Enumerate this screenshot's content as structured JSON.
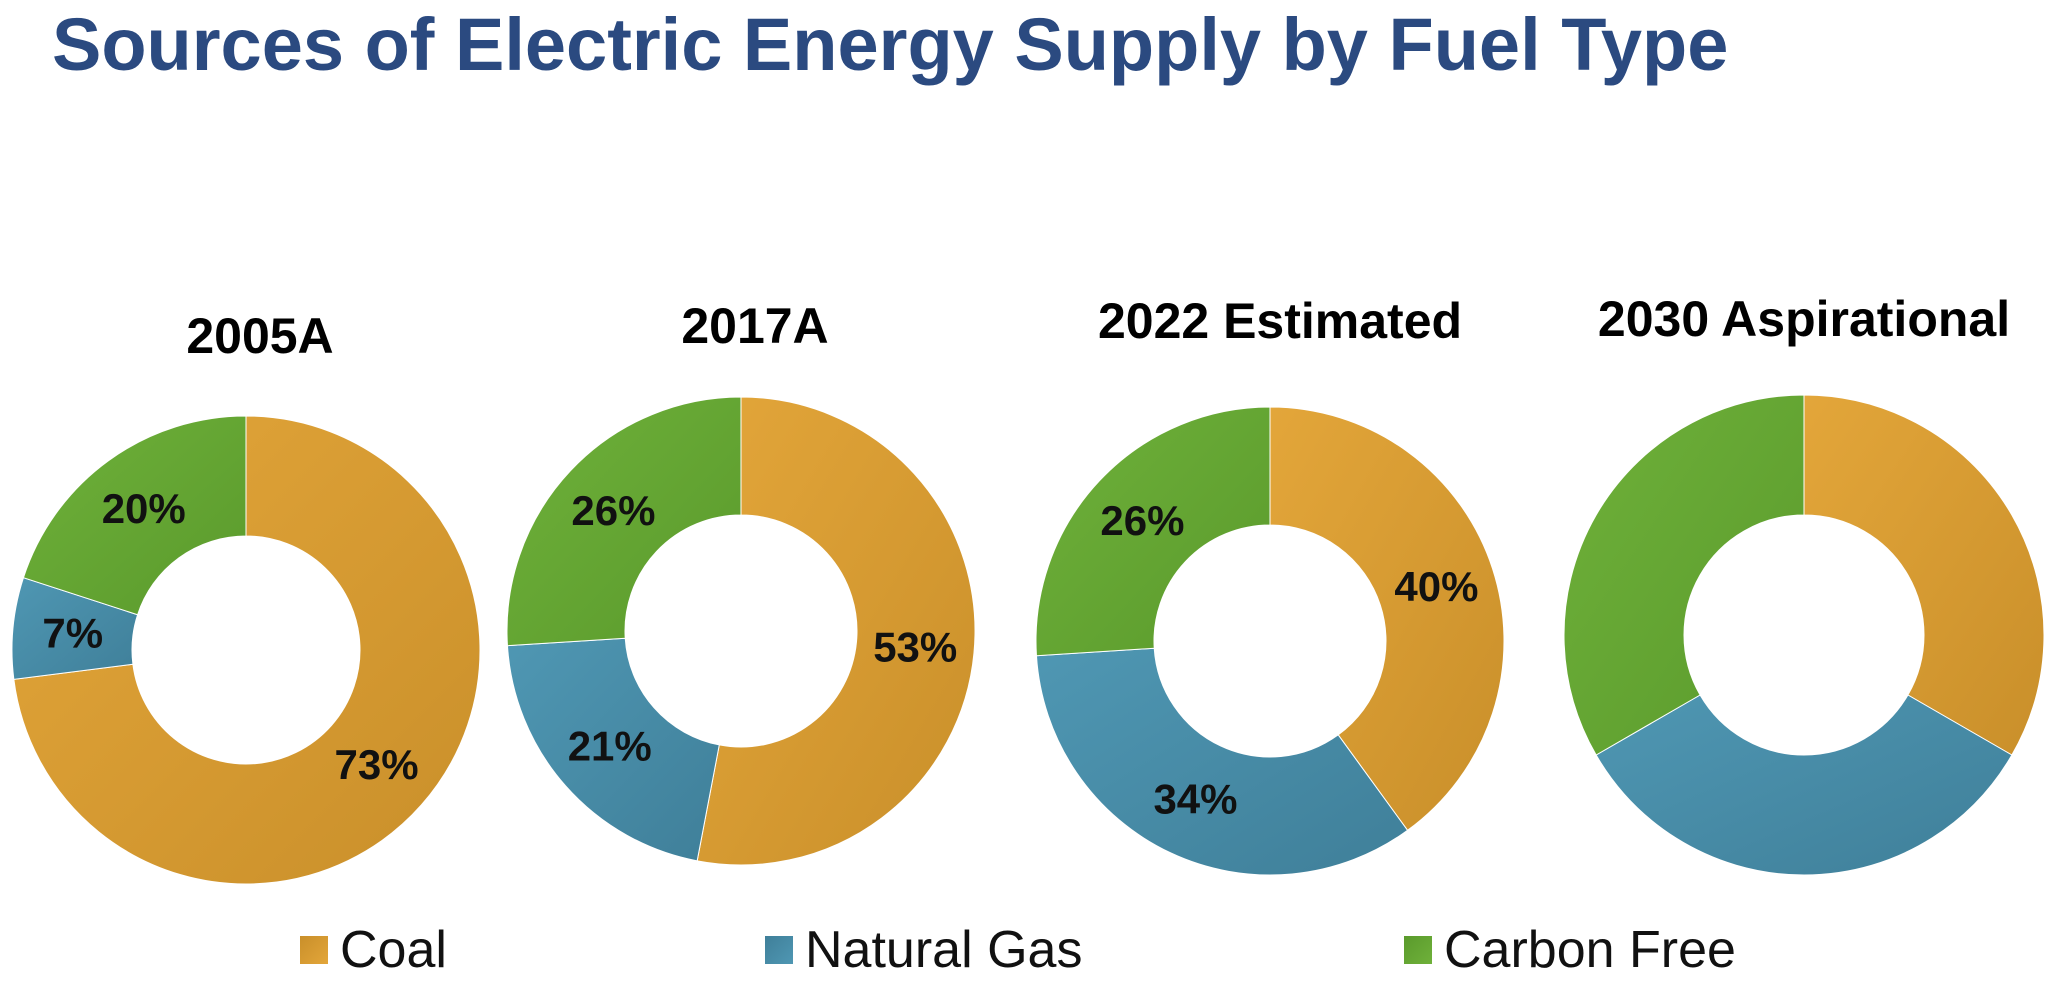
{
  "title": "Sources of Electric Energy Supply by Fuel Type",
  "legend": {
    "coal": "Coal",
    "natural_gas": "Natural Gas",
    "carbon_free": "Carbon Free"
  },
  "colors": {
    "coal": "#e3a63a",
    "coal_dark": "#c98f2a",
    "natural_gas": "#4f97b3",
    "natural_gas_dark": "#3f7f99",
    "carbon_free": "#6fb13a",
    "carbon_free_dark": "#5a9a2c",
    "title": "#2b4a80"
  },
  "chart_data": [
    {
      "type": "pie",
      "title": "2005A",
      "categories": [
        "Coal",
        "Natural Gas",
        "Carbon Free"
      ],
      "values": [
        73,
        7,
        20
      ],
      "labels": [
        "73%",
        "7%",
        "20%"
      ]
    },
    {
      "type": "pie",
      "title": "2017A",
      "categories": [
        "Coal",
        "Natural Gas",
        "Carbon Free"
      ],
      "values": [
        53,
        21,
        26
      ],
      "labels": [
        "53%",
        "21%",
        "26%"
      ]
    },
    {
      "type": "pie",
      "title": "2022 Estimated",
      "categories": [
        "Coal",
        "Natural Gas",
        "Carbon Free"
      ],
      "values": [
        40,
        34,
        26
      ],
      "labels": [
        "40%",
        "34%",
        "26%"
      ]
    },
    {
      "type": "pie",
      "title": "2030 Aspirational",
      "categories": [
        "Coal",
        "Natural Gas",
        "Carbon Free"
      ],
      "values": [
        33.3,
        33.3,
        33.3
      ],
      "labels": [
        "",
        "",
        ""
      ]
    }
  ]
}
